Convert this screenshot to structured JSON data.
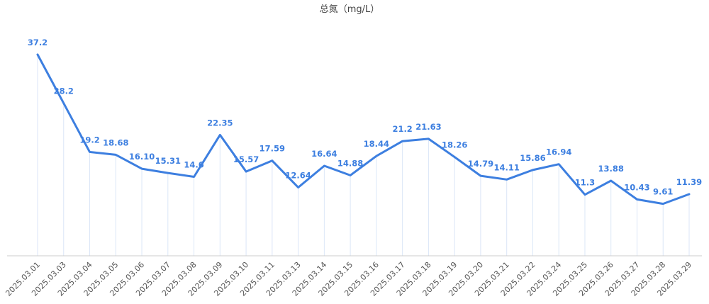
{
  "chart_data": {
    "type": "line",
    "title": "总氮（mg/L）",
    "xlabel": "",
    "ylabel": "",
    "categories": [
      "2025.03.01",
      "2025.03.03",
      "2025.03.04",
      "2025.03.05",
      "2025.03.06",
      "2025.03.07",
      "2025.03.08",
      "2025.03.09",
      "2025.03.10",
      "2025.03.11",
      "2025.03.13",
      "2025.03.14",
      "2025.03.15",
      "2025.03.16",
      "2025.03.17",
      "2025.03.18",
      "2025.03.19",
      "2025.03.20",
      "2025.03.21",
      "2025.03.22",
      "2025.03.24",
      "2025.03.25",
      "2025.03.26",
      "2025.03.27",
      "2025.03.28",
      "2025.03.29"
    ],
    "values": [
      37.2,
      28.2,
      19.2,
      18.68,
      16.1,
      15.31,
      14.6,
      22.35,
      15.57,
      17.59,
      12.64,
      16.64,
      14.88,
      18.44,
      21.2,
      21.63,
      18.26,
      14.79,
      14.11,
      15.86,
      16.94,
      11.3,
      13.88,
      10.43,
      9.61,
      11.39
    ],
    "labels": [
      "37.2",
      "28.2",
      "19.2",
      "18.68",
      "16.10",
      "15.31",
      "14.6",
      "22.35",
      "15.57",
      "17.59",
      "12.64",
      "16.64",
      "14.88",
      "18.44",
      "21.2",
      "21.63",
      "18.26",
      "14.79",
      "14.11",
      "15.86",
      "16.94",
      "11.3",
      "13.88",
      "10.43",
      "9.61",
      "11.39"
    ],
    "ylim": [
      0,
      40
    ],
    "grid": false,
    "colors": {
      "line": "#3d7fe0",
      "label": "#3d7fe0",
      "dropline": "#dbe6f7",
      "axis": "#cccccc"
    }
  }
}
